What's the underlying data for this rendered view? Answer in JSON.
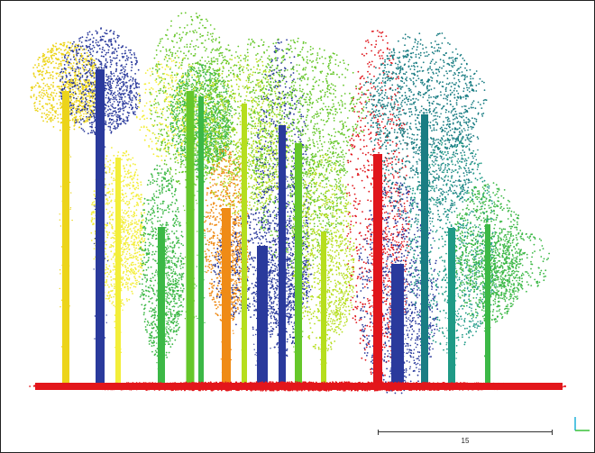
{
  "viewer": {
    "scale_label": "15",
    "axis_colors": {
      "vertical": "#1db0d8",
      "horizontal": "#38c038"
    }
  },
  "palette": {
    "ground": "#e3161b",
    "navy": "#2a3a9c",
    "yellow": "#ecd41a",
    "light_yellow": "#f3ee3a",
    "lime": "#b6de1e",
    "green": "#66c72a",
    "medium_green": "#3cb846",
    "teal": "#1f9a86",
    "dark_teal": "#1a7d83",
    "orange": "#ef8b16",
    "red": "#e0161c"
  }
}
